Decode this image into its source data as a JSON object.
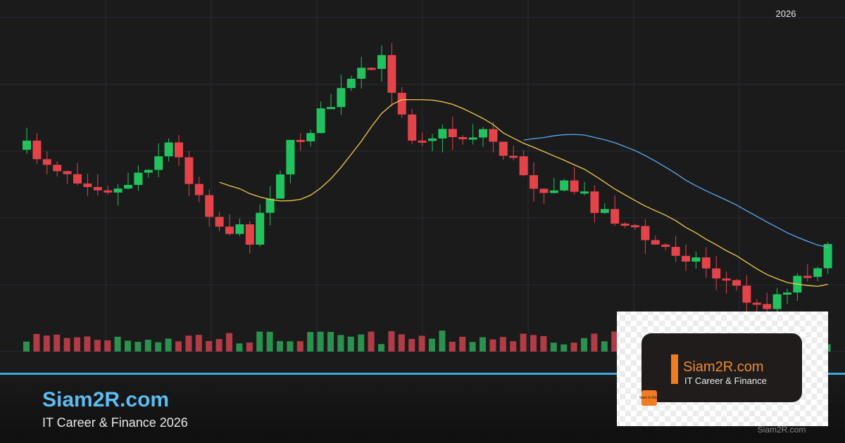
{
  "header": {
    "year": "2026"
  },
  "brand": {
    "title": "Siam2R.com",
    "subtitle": "IT Career & Finance 2026"
  },
  "logo_card": {
    "title": "Siam2R.com",
    "subtitle": "IT Career & Finance",
    "icon": "Siam to Rich"
  },
  "watermark": "Siam2R.com"
}
